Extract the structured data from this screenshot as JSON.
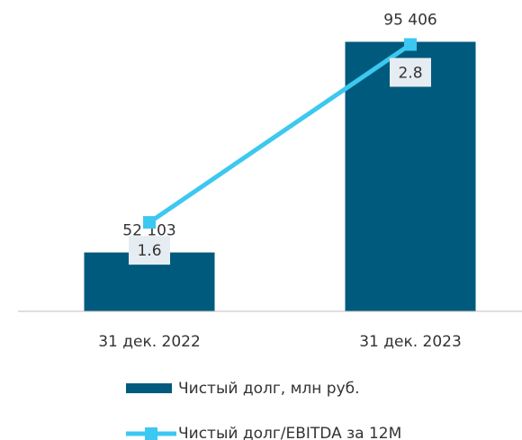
{
  "chart_data": {
    "type": "bar+line",
    "categories": [
      "31 дек. 2022",
      "31 дек. 2023"
    ],
    "series": [
      {
        "name": "Чистый долг, млн руб.",
        "type": "bar",
        "color": "#005a7d",
        "values": [
          52103,
          95406
        ],
        "value_labels": [
          "52 103",
          "95 406"
        ]
      },
      {
        "name": "Чистый долг/EBITDA за 12М",
        "type": "line",
        "axis": "y2",
        "color": "#3cc8f0",
        "values": [
          1.6,
          2.8
        ]
      }
    ],
    "ylim": [
      40000,
      104000
    ],
    "y2lim": [
      1.0,
      3.1
    ]
  }
}
